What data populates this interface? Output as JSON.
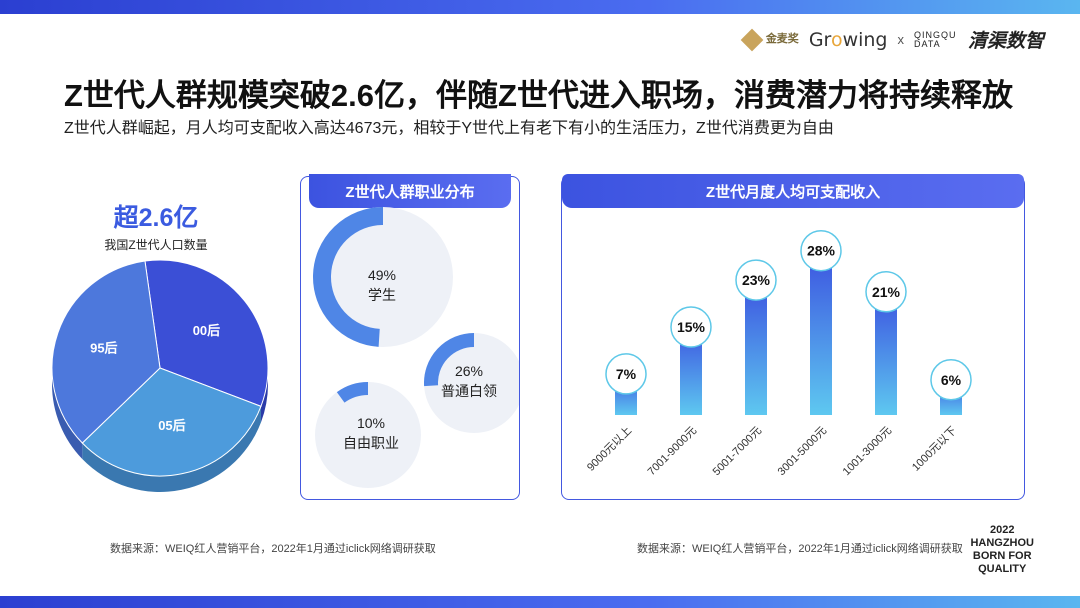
{
  "logos": {
    "jinmai_label": "金麦奖",
    "growing_prefix": "Gr",
    "growing_o": "o",
    "growing_suffix": "wing",
    "times": "x",
    "qingqu_en": "QINGQU DATA",
    "qingqu_cn": "清渠数智"
  },
  "title": "Z世代人群规模突破2.6亿，伴随Z世代进入职场，消费潜力将持续释放",
  "subtitle": "Z世代人群崛起，月人均可支配收入高达4673元，相较于Y世代上有老下有小的生活压力，Z世代消费更为自由",
  "population": {
    "headline": "超2.6亿",
    "caption": "我国Z世代人口数量"
  },
  "occupation_panel": {
    "title": "Z世代人群职业分布"
  },
  "income_panel": {
    "title": "Z世代月度人均可支配收入"
  },
  "source_left": "数据来源：WEIQ红人营销平台，2022年1月通过iclick网络调研获取",
  "source_right": "数据来源：WEIQ红人营销平台，2022年1月通过iclick网络调研获取",
  "brand": {
    "line1": "2022",
    "line2": "HANGZHOU",
    "line3": "BORN FOR",
    "line4": "QUALITY"
  },
  "colors": {
    "accent": "#3c53e0",
    "pie_00": "#3b4fd6",
    "pie_05": "#4d9bdc",
    "pie_95": "#4d78dc"
  },
  "chart_data": [
    {
      "type": "pie",
      "title": "我国Z世代人口数量",
      "categories": [
        "00后",
        "05后",
        "95后"
      ],
      "values": [
        33,
        32,
        35
      ]
    },
    {
      "type": "pie",
      "title": "Z世代人群职业分布",
      "categories": [
        "学生",
        "普通白领",
        "自由职业"
      ],
      "values": [
        49,
        26,
        10
      ],
      "labels": [
        "49%",
        "26%",
        "10%"
      ]
    },
    {
      "type": "bar",
      "title": "Z世代月度人均可支配收入",
      "categories": [
        "9000元以上",
        "7001-9000元",
        "5001-7000元",
        "3001-5000元",
        "1001-3000元",
        "1000元以下"
      ],
      "values": [
        7,
        15,
        23,
        28,
        21,
        6
      ],
      "labels": [
        "7%",
        "15%",
        "23%",
        "28%",
        "21%",
        "6%"
      ],
      "ylim": [
        0,
        30
      ]
    }
  ]
}
